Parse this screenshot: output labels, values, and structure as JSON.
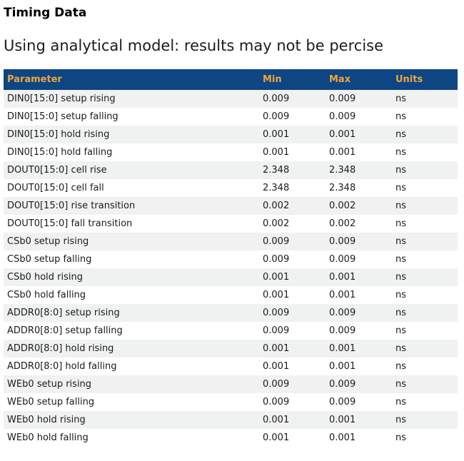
{
  "page": {
    "title": "Timing Data",
    "subtitle": "Using analytical model: results may not be percise"
  },
  "colors": {
    "header_bg": "#0e4583",
    "header_text": "#efa63d",
    "row_stripe_bg": "#f0f2f1",
    "body_text": "#1a1a1a"
  },
  "table": {
    "headers": [
      "Parameter",
      "Min",
      "Max",
      "Units"
    ],
    "rows": [
      {
        "parameter": "DIN0[15:0] setup rising",
        "min": "0.009",
        "max": "0.009",
        "units": "ns"
      },
      {
        "parameter": "DIN0[15:0] setup falling",
        "min": "0.009",
        "max": "0.009",
        "units": "ns"
      },
      {
        "parameter": "DIN0[15:0] hold rising",
        "min": "0.001",
        "max": "0.001",
        "units": "ns"
      },
      {
        "parameter": "DIN0[15:0] hold falling",
        "min": "0.001",
        "max": "0.001",
        "units": "ns"
      },
      {
        "parameter": "DOUT0[15:0] cell rise",
        "min": "2.348",
        "max": "2.348",
        "units": "ns"
      },
      {
        "parameter": "DOUT0[15:0] cell fall",
        "min": "2.348",
        "max": "2.348",
        "units": "ns"
      },
      {
        "parameter": "DOUT0[15:0] rise transition",
        "min": "0.002",
        "max": "0.002",
        "units": "ns"
      },
      {
        "parameter": "DOUT0[15:0] fall transition",
        "min": "0.002",
        "max": "0.002",
        "units": "ns"
      },
      {
        "parameter": "CSb0 setup rising",
        "min": "0.009",
        "max": "0.009",
        "units": "ns"
      },
      {
        "parameter": "CSb0 setup falling",
        "min": "0.009",
        "max": "0.009",
        "units": "ns"
      },
      {
        "parameter": "CSb0 hold rising",
        "min": "0.001",
        "max": "0.001",
        "units": "ns"
      },
      {
        "parameter": "CSb0 hold falling",
        "min": "0.001",
        "max": "0.001",
        "units": "ns"
      },
      {
        "parameter": "ADDR0[8:0] setup rising",
        "min": "0.009",
        "max": "0.009",
        "units": "ns"
      },
      {
        "parameter": "ADDR0[8:0] setup falling",
        "min": "0.009",
        "max": "0.009",
        "units": "ns"
      },
      {
        "parameter": "ADDR0[8:0] hold rising",
        "min": "0.001",
        "max": "0.001",
        "units": "ns"
      },
      {
        "parameter": "ADDR0[8:0] hold falling",
        "min": "0.001",
        "max": "0.001",
        "units": "ns"
      },
      {
        "parameter": "WEb0 setup rising",
        "min": "0.009",
        "max": "0.009",
        "units": "ns"
      },
      {
        "parameter": "WEb0 setup falling",
        "min": "0.009",
        "max": "0.009",
        "units": "ns"
      },
      {
        "parameter": "WEb0 hold rising",
        "min": "0.001",
        "max": "0.001",
        "units": "ns"
      },
      {
        "parameter": "WEb0 hold falling",
        "min": "0.001",
        "max": "0.001",
        "units": "ns"
      }
    ]
  }
}
